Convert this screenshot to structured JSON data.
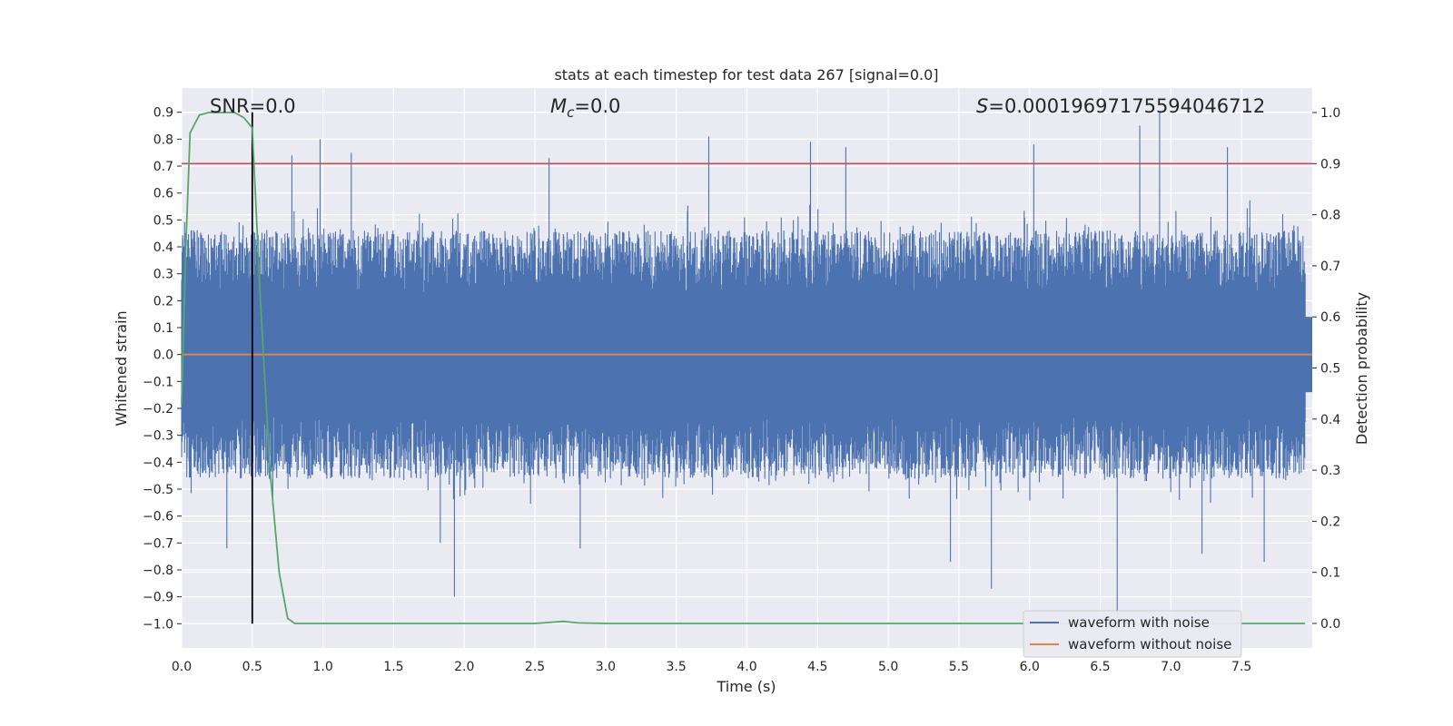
{
  "chart_data": {
    "type": "line",
    "title": "stats at each timestep for test data 267 [signal=0.0]",
    "xlabel": "Time (s)",
    "ylabel": "Whitened strain",
    "y2label": "Detection probability",
    "xlim": [
      0.0,
      8.0
    ],
    "ylim": [
      -1.09,
      0.99
    ],
    "y2lim": [
      -0.048,
      1.048
    ],
    "xticks": [
      0.0,
      0.5,
      1.0,
      1.5,
      2.0,
      2.5,
      3.0,
      3.5,
      4.0,
      4.5,
      5.0,
      5.5,
      6.0,
      6.5,
      7.0,
      7.5
    ],
    "xtick_labels": [
      "0.0",
      "0.5",
      "1.0",
      "1.5",
      "2.0",
      "2.5",
      "3.0",
      "3.5",
      "4.0",
      "4.5",
      "5.0",
      "5.5",
      "6.0",
      "6.5",
      "7.0",
      "7.5"
    ],
    "yticks": [
      0.9,
      0.8,
      0.7,
      0.6,
      0.5,
      0.4,
      0.3,
      0.2,
      0.1,
      0.0,
      -0.1,
      -0.2,
      -0.3,
      -0.4,
      -0.5,
      -0.6,
      -0.7,
      -0.8,
      -0.9,
      -1.0
    ],
    "ytick_labels": [
      "0.9",
      "0.8",
      "0.7",
      "0.6",
      "0.5",
      "0.4",
      "0.3",
      "0.2",
      "0.1",
      "0.0",
      "−0.1",
      "−0.2",
      "−0.3",
      "−0.4",
      "−0.5",
      "−0.6",
      "−0.7",
      "−0.8",
      "−0.9",
      "−1.0"
    ],
    "y2ticks": [
      1.0,
      0.9,
      0.8,
      0.7,
      0.6,
      0.5,
      0.4,
      0.3,
      0.2,
      0.1,
      0.0
    ],
    "y2tick_labels": [
      "1.0",
      "0.9",
      "0.8",
      "0.7",
      "0.6",
      "0.5",
      "0.4",
      "0.3",
      "0.2",
      "0.1",
      "0.0"
    ],
    "annotations": {
      "snr": "SNR=0.0",
      "mc_symbol": "M",
      "mc_sub": "c",
      "mc_value": "=0.0",
      "s_symbol": "S",
      "s_value": "=0.00019697175594046712"
    },
    "threshold": {
      "value": 0.9,
      "axis": "right",
      "color": "#c44e52"
    },
    "marker_line": {
      "x": 0.5,
      "y_from": -1.0,
      "y_to": 0.9,
      "color": "#000000"
    },
    "noise_envelope": {
      "description": "dense noisy whitened-strain trace (approximate envelope)",
      "positive_peaks": [
        {
          "x": 0.98,
          "y": 0.8
        },
        {
          "x": 1.2,
          "y": 0.75
        },
        {
          "x": 0.78,
          "y": 0.74
        },
        {
          "x": 2.6,
          "y": 0.73
        },
        {
          "x": 3.73,
          "y": 0.81
        },
        {
          "x": 4.45,
          "y": 0.79
        },
        {
          "x": 4.7,
          "y": 0.77
        },
        {
          "x": 6.03,
          "y": 0.78
        },
        {
          "x": 6.78,
          "y": 0.85
        },
        {
          "x": 6.92,
          "y": 0.9
        },
        {
          "x": 7.4,
          "y": 0.77
        }
      ],
      "negative_peaks": [
        {
          "x": 0.32,
          "y": -0.72
        },
        {
          "x": 1.93,
          "y": -0.9
        },
        {
          "x": 1.83,
          "y": -0.7
        },
        {
          "x": 2.82,
          "y": -0.72
        },
        {
          "x": 5.44,
          "y": -0.77
        },
        {
          "x": 5.73,
          "y": -0.87
        },
        {
          "x": 6.62,
          "y": -0.98
        },
        {
          "x": 7.66,
          "y": -0.77
        },
        {
          "x": 7.22,
          "y": -0.74
        }
      ],
      "typical_amplitude": 0.42
    },
    "series": [
      {
        "name": "waveform with noise",
        "color": "#4c72b0",
        "axis": "left",
        "kind": "noise"
      },
      {
        "name": "waveform without noise",
        "color": "#dd8452",
        "axis": "left",
        "kind": "flat",
        "value": 0.0
      },
      {
        "name": "detection probability",
        "color": "#55a868",
        "axis": "right",
        "legend": false,
        "x": [
          0.0,
          0.03,
          0.06,
          0.125,
          0.19,
          0.25,
          0.31,
          0.375,
          0.44,
          0.5,
          0.56,
          0.625,
          0.69,
          0.75,
          0.8,
          1.0,
          2.5,
          2.6,
          2.7,
          2.8,
          3.0,
          5.0,
          7.0,
          7.95
        ],
        "values": [
          0.43,
          0.74,
          0.96,
          0.995,
          1.0,
          1.0,
          1.0,
          1.0,
          0.99,
          0.97,
          0.62,
          0.3,
          0.1,
          0.01,
          0.0,
          0.0,
          0.0,
          0.002,
          0.004,
          0.001,
          0.0,
          0.0,
          0.0,
          0.0
        ]
      }
    ],
    "legend": {
      "placement": "lower-right",
      "entries": [
        {
          "label": "waveform with noise",
          "color": "#4c72b0"
        },
        {
          "label": "waveform without noise",
          "color": "#dd8452"
        }
      ]
    },
    "style": {
      "background": "#eaeaf2",
      "grid": true,
      "grid_color": "#ffffff"
    }
  }
}
